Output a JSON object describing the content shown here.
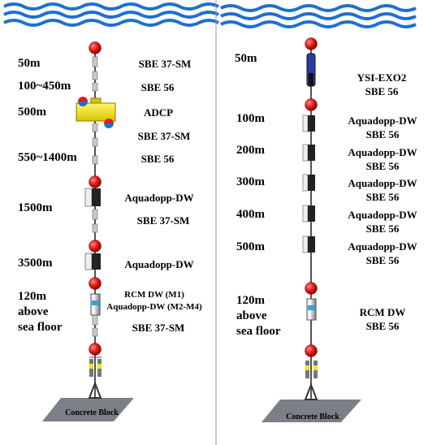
{
  "left_mooring": {
    "depths": [
      "50m",
      "100~450m",
      "500m",
      "550~1400m",
      "1500m",
      "3500m"
    ],
    "bottom_depth_lines": [
      "120m",
      "above",
      "sea floor"
    ],
    "instruments": [
      "SBE 37-SM",
      "SBE 56",
      "ADCP",
      "SBE 37-SM",
      "SBE 56",
      "Aquadopp-DW",
      "SBE 37-SM",
      "Aquadopp-DW",
      "RCM DW (M1)",
      "Aquadopp-DW (M2-M4)",
      "SBE 37-SM"
    ],
    "anchor_label": "Concrete Block"
  },
  "right_mooring": {
    "depths": [
      "50m",
      "100m",
      "200m",
      "300m",
      "400m",
      "500m"
    ],
    "bottom_depth_lines": [
      "120m",
      "above",
      "sea floor"
    ],
    "instruments": [
      "YSI-EXO2",
      "SBE 56",
      "Aquadopp-DW",
      "SBE 56",
      "Aquadopp-DW",
      "SBE 56",
      "Aquadopp-DW",
      "SBE 56",
      "Aquadopp-DW",
      "SBE 56",
      "Aquadopp-DW",
      "SBE 56",
      "RCM DW",
      "SBE 56"
    ],
    "anchor_label": "Concrete Block"
  },
  "colors": {
    "wave": "#1f6fd0",
    "float": "#e21b1b",
    "adcp": "#f2e31b",
    "block": "#7d7f86"
  }
}
